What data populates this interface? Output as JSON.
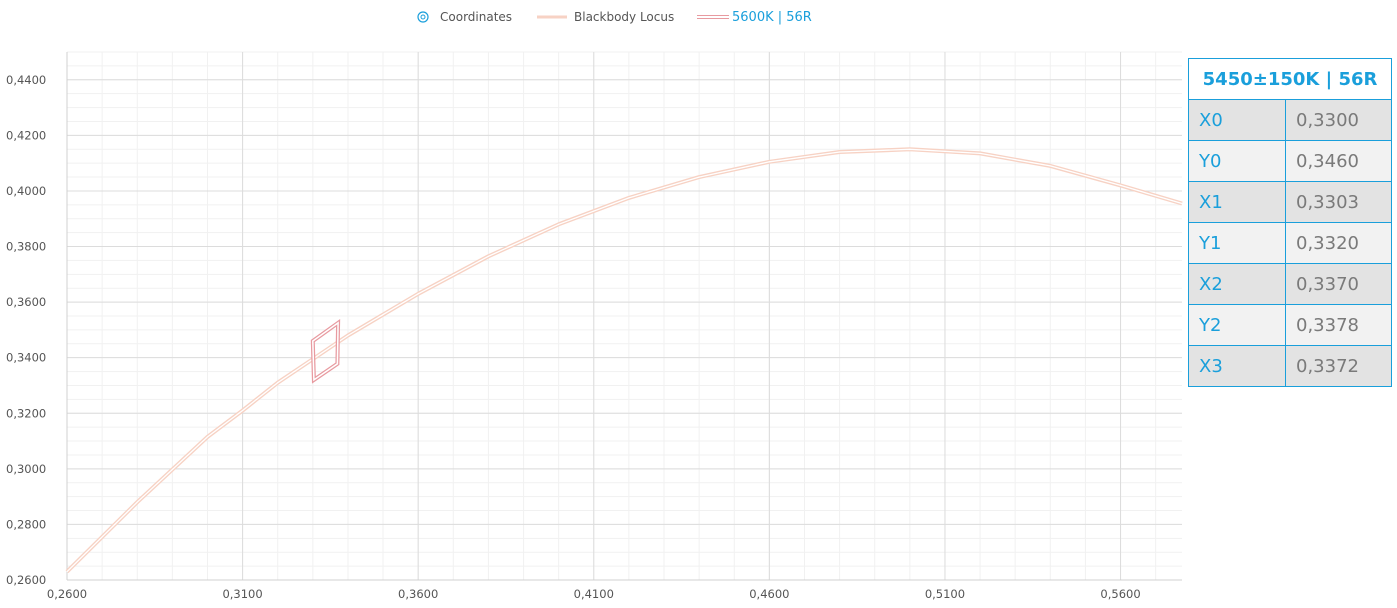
{
  "chart_data": {
    "type": "line",
    "title": "",
    "xlabel": "",
    "ylabel": "",
    "xlim": [
      0.26,
      0.5775
    ],
    "ylim": [
      0.26,
      0.45
    ],
    "x_ticks": [
      "0,2600",
      "0,3100",
      "0,3600",
      "0,4100",
      "0,4600",
      "0,5100",
      "0,5600"
    ],
    "y_ticks": [
      "0,2600",
      "0,2800",
      "0,3000",
      "0,3200",
      "0,3400",
      "0,3600",
      "0,3800",
      "0,4000",
      "0,4200",
      "0,4400"
    ],
    "grid": true,
    "legend_position": "top-center",
    "legend": [
      {
        "label": "Coordinates",
        "icon": "circle-marker-icon",
        "color": "#1a9fdb"
      },
      {
        "label": "Blackbody Locus",
        "icon": "line-swatch-icon",
        "color": "#f7d2c4"
      },
      {
        "label": "5600K | 56R",
        "icon": "line-swatch-icon",
        "color": "#e89aa0"
      }
    ],
    "series": [
      {
        "name": "Blackbody Locus",
        "color": "#f7d2c4",
        "points": [
          [
            0.26,
            0.263
          ],
          [
            0.28,
            0.288
          ],
          [
            0.3,
            0.3115
          ],
          [
            0.31,
            0.321
          ],
          [
            0.32,
            0.331
          ],
          [
            0.33,
            0.3395
          ],
          [
            0.34,
            0.348
          ],
          [
            0.35,
            0.3555
          ],
          [
            0.36,
            0.363
          ],
          [
            0.38,
            0.3765
          ],
          [
            0.4,
            0.388
          ],
          [
            0.42,
            0.3975
          ],
          [
            0.44,
            0.405
          ],
          [
            0.46,
            0.4105
          ],
          [
            0.48,
            0.414
          ],
          [
            0.5,
            0.415
          ],
          [
            0.52,
            0.4135
          ],
          [
            0.54,
            0.409
          ],
          [
            0.56,
            0.402
          ],
          [
            0.5775,
            0.3955
          ]
        ]
      },
      {
        "name": "5600K | 56R",
        "color": "#e89aa0",
        "points": [
          [
            0.33,
            0.346
          ],
          [
            0.3303,
            0.332
          ],
          [
            0.337,
            0.3378
          ],
          [
            0.3372,
            0.3525
          ],
          [
            0.33,
            0.346
          ]
        ]
      }
    ]
  },
  "table": {
    "title": "5450±150K | 56R",
    "rows": [
      {
        "key": "X0",
        "value": "0,3300"
      },
      {
        "key": "Y0",
        "value": "0,3460"
      },
      {
        "key": "X1",
        "value": "0,3303"
      },
      {
        "key": "Y1",
        "value": "0,3320"
      },
      {
        "key": "X2",
        "value": "0,3370"
      },
      {
        "key": "Y2",
        "value": "0,3378"
      },
      {
        "key": "X3",
        "value": "0,3372"
      }
    ]
  }
}
